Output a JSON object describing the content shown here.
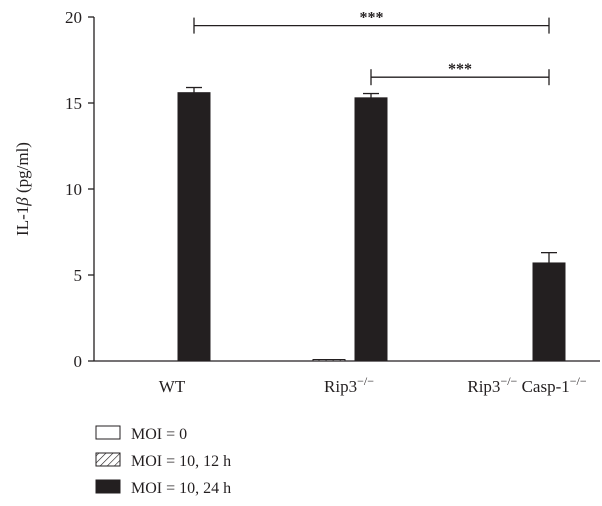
{
  "chart_data": {
    "type": "bar",
    "ylabel": "IL-1β (pg/ml)",
    "ylabel_parts": [
      "IL-1",
      "β",
      " (pg/ml)"
    ],
    "ylim": [
      0,
      20
    ],
    "yticks": [
      0,
      5,
      10,
      15,
      20
    ],
    "categories": [
      "WT",
      "Rip3−/−",
      "Rip3−/− Casp-1−/−"
    ],
    "category_labels": [
      {
        "parts": [
          {
            "t": "WT",
            "sup": false
          }
        ]
      },
      {
        "parts": [
          {
            "t": "Rip3",
            "sup": false
          },
          {
            "t": "−/−",
            "sup": true
          }
        ]
      },
      {
        "parts": [
          {
            "t": "Rip3",
            "sup": false
          },
          {
            "t": "−/−",
            "sup": true
          },
          {
            "t": " Casp-1",
            "sup": false
          },
          {
            "t": "−/−",
            "sup": true
          }
        ]
      }
    ],
    "series": [
      {
        "name": "MOI = 0",
        "fill": "open",
        "values": [
          0,
          0,
          0
        ],
        "errors": [
          0,
          0,
          0
        ]
      },
      {
        "name": "MOI = 10, 12 h",
        "fill": "hatched",
        "values": [
          0,
          0.05,
          0
        ],
        "errors": [
          0,
          0,
          0
        ]
      },
      {
        "name": "MOI = 10, 24 h",
        "fill": "solid",
        "values": [
          15.6,
          15.3,
          5.7
        ],
        "errors": [
          0.3,
          0.25,
          0.6
        ]
      }
    ],
    "significance": [
      {
        "label": "***",
        "from_category": 0,
        "to_category": 2,
        "series": 2,
        "level": 19.5
      },
      {
        "label": "***",
        "from_category": 1,
        "to_category": 2,
        "series": 2,
        "level": 16.5
      }
    ],
    "legend_placement": "bottom-left",
    "grid": false
  },
  "colors": {
    "ink": "#231f20",
    "open_fill": "#ffffff"
  }
}
